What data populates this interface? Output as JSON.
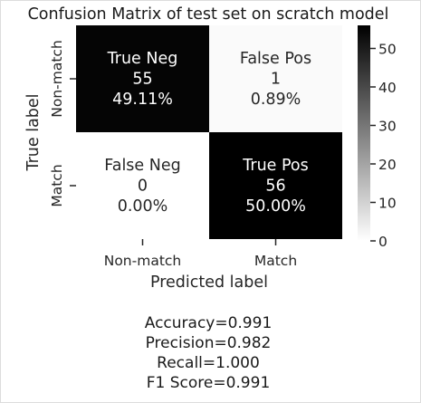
{
  "chart_data": {
    "type": "heatmap",
    "title": "Confusion Matrix of test set on scratch model",
    "xlabel": "Predicted label",
    "ylabel": "True label",
    "x_categories": [
      "Non-match",
      "Match"
    ],
    "y_categories": [
      "Non-match",
      "Match"
    ],
    "values": [
      [
        55,
        1
      ],
      [
        0,
        56
      ]
    ],
    "cell_labels": [
      [
        [
          "True Neg",
          "55",
          "49.11%"
        ],
        [
          "False Pos",
          "1",
          "0.89%"
        ]
      ],
      [
        [
          "False Neg",
          "0",
          "0.00%"
        ],
        [
          "True Pos",
          "56",
          "50.00%"
        ]
      ]
    ],
    "colorbar": {
      "min": 0,
      "max": 56,
      "ticks": [
        0,
        10,
        20,
        30,
        40,
        50
      ],
      "colormap": "greys-reversed (white=0, black=max)"
    },
    "grid": false
  },
  "stats": {
    "accuracy": "Accuracy=0.991",
    "precision": "Precision=0.982",
    "recall": "Recall=1.000",
    "f1": "F1 Score=0.991"
  }
}
